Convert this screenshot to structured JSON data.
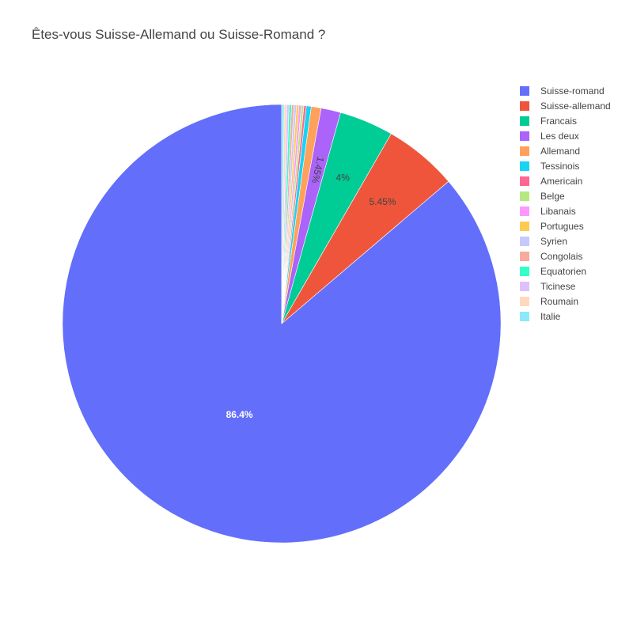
{
  "chart_data": {
    "type": "pie",
    "title": "Êtes-vous Suisse-Allemand ou Suisse-Romand ?",
    "legend_position": "right",
    "direction": "counterclockwise",
    "start": "top",
    "slices": [
      {
        "label": "Suisse-romand",
        "percent": 86.4,
        "color": "#636efa",
        "text": "86.4%",
        "text_color": "#ffffff"
      },
      {
        "label": "Suisse-allemand",
        "percent": 5.45,
        "color": "#ef553b",
        "text": "5.45%",
        "text_color": "#444444"
      },
      {
        "label": "Francais",
        "percent": 4.0,
        "color": "#00cc96",
        "text": "4%",
        "text_color": "#444444"
      },
      {
        "label": "Les deux",
        "percent": 1.45,
        "color": "#ab63fa",
        "text": "1.45%",
        "text_color": "#444444",
        "rotate": true
      },
      {
        "label": "Allemand",
        "percent": 0.73,
        "color": "#ffa15a",
        "text": ""
      },
      {
        "label": "Tessinois",
        "percent": 0.36,
        "color": "#19d3f3",
        "text": ""
      },
      {
        "label": "Americain",
        "percent": 0.18,
        "color": "#ff6692",
        "text": ""
      },
      {
        "label": "Belge",
        "percent": 0.18,
        "color": "#b6e880",
        "text": ""
      },
      {
        "label": "Libanais",
        "percent": 0.18,
        "color": "#ff97ff",
        "text": ""
      },
      {
        "label": "Portugues",
        "percent": 0.18,
        "color": "#fecb52",
        "text": ""
      },
      {
        "label": "Syrien",
        "percent": 0.18,
        "color": "#c6c9fc",
        "text": ""
      },
      {
        "label": "Congolais",
        "percent": 0.18,
        "color": "#f7ab9d",
        "text": ""
      },
      {
        "label": "Equatorien",
        "percent": 0.18,
        "color": "#33ffc7",
        "text": ""
      },
      {
        "label": "Ticinese",
        "percent": 0.18,
        "color": "#ddc1fd",
        "text": ""
      },
      {
        "label": "Roumain",
        "percent": 0.18,
        "color": "#ffd9bd",
        "text": ""
      },
      {
        "label": "Italie",
        "percent": 0.18,
        "color": "#8ce9f9",
        "text": ""
      }
    ]
  }
}
